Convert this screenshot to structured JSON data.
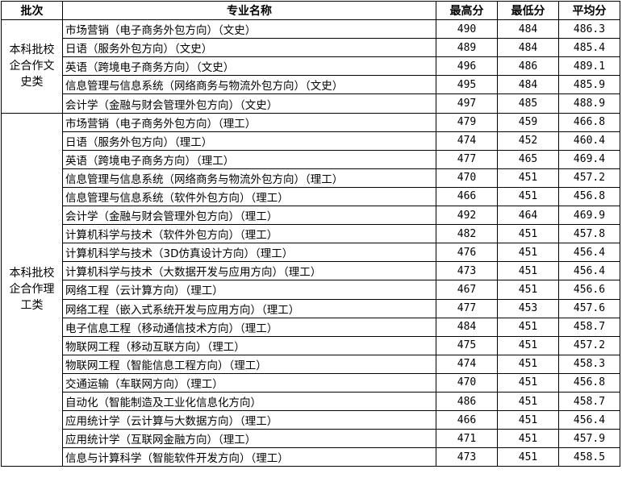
{
  "headers": [
    "批次",
    "专业名称",
    "最高分",
    "最低分",
    "平均分"
  ],
  "groups": [
    {
      "batch": "本科批校企合作文史类",
      "rows": [
        [
          "市场营销（电子商务外包方向）（文史）",
          "490",
          "484",
          "486.3"
        ],
        [
          "日语（服务外包方向）（文史）",
          "489",
          "484",
          "485.4"
        ],
        [
          "英语（跨境电子商务方向）（文史）",
          "496",
          "486",
          "489.1"
        ],
        [
          "信息管理与信息系统（网络商务与物流外包方向）（文史）",
          "495",
          "484",
          "485.9"
        ],
        [
          "会计学（金融与财会管理外包方向）（文史）",
          "497",
          "485",
          "488.9"
        ]
      ]
    },
    {
      "batch": "本科批校企合作理工类",
      "rows": [
        [
          "市场营销（电子商务外包方向）（理工）",
          "479",
          "459",
          "466.8"
        ],
        [
          "日语（服务外包方向）（理工）",
          "474",
          "452",
          "460.4"
        ],
        [
          "英语（跨境电子商务方向）（理工）",
          "477",
          "465",
          "469.4"
        ],
        [
          "信息管理与信息系统（网络商务与物流外包方向）（理工）",
          "470",
          "451",
          "457.2"
        ],
        [
          "信息管理与信息系统（软件外包方向）（理工）",
          "466",
          "451",
          "456.8"
        ],
        [
          "会计学（金融与财会管理外包方向）（理工）",
          "492",
          "464",
          "469.9"
        ],
        [
          "计算机科学与技术（软件外包方向）（理工）",
          "482",
          "451",
          "457.8"
        ],
        [
          "计算机科学与技术（3D仿真设计方向）（理工）",
          "476",
          "451",
          "456.4"
        ],
        [
          "计算机科学与技术（大数据开发与应用方向）（理工）",
          "473",
          "451",
          "456.4"
        ],
        [
          "网络工程（云计算方向）（理工）",
          "467",
          "451",
          "456.6"
        ],
        [
          "网络工程（嵌入式系统开发与应用方向）（理工）",
          "477",
          "453",
          "457.6"
        ],
        [
          "电子信息工程（移动通信技术方向）（理工）",
          "484",
          "451",
          "458.7"
        ],
        [
          "物联网工程（移动互联方向）（理工）",
          "475",
          "451",
          "457.2"
        ],
        [
          "物联网工程（智能信息工程方向）（理工）",
          "474",
          "451",
          "458.3"
        ],
        [
          "交通运输（车联网方向）（理工）",
          "470",
          "451",
          "456.8"
        ],
        [
          "自动化（智能制造及工业化信息化方向）",
          "486",
          "451",
          "458.7"
        ],
        [
          "应用统计学（云计算与大数据方向）（理工）",
          "466",
          "451",
          "456.4"
        ],
        [
          "应用统计学（互联网金融方向）（理工）",
          "471",
          "451",
          "457.9"
        ],
        [
          "信息与计算科学（智能软件开发方向）（理工）",
          "473",
          "451",
          "458.5"
        ]
      ]
    }
  ]
}
